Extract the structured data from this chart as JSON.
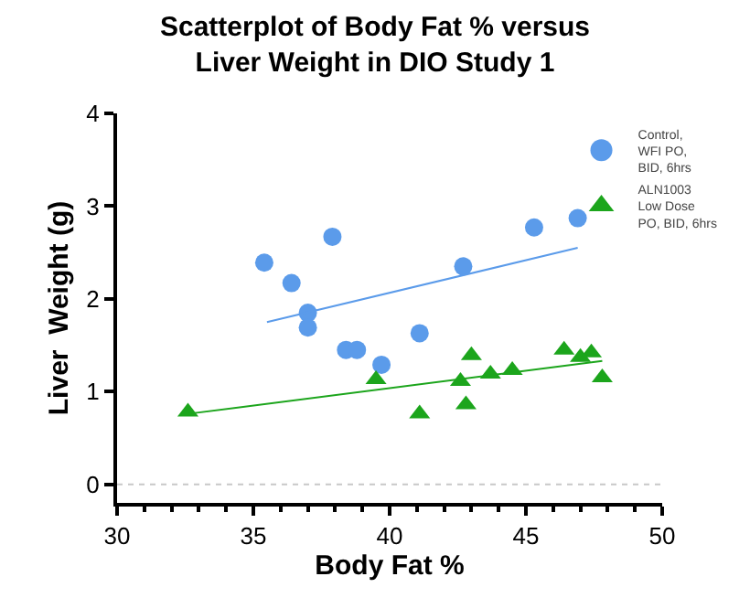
{
  "chart_data": {
    "type": "scatter",
    "title": "Scatterplot of Body Fat % versus\nLiver Weight in DIO Study 1",
    "xlabel": "Body Fat %",
    "ylabel": "Liver  Weight (g)",
    "xlim": [
      30,
      50
    ],
    "xticks": [
      30,
      35,
      40,
      45,
      50
    ],
    "ylim": [
      -0.2,
      4
    ],
    "yticks": [
      0,
      1,
      2,
      3,
      4
    ],
    "grid": false,
    "legend": "top right",
    "series": [
      {
        "name": "Control,\nWFI PO,\nBID, 6hrs",
        "color": "#5b9bea",
        "marker": "circle",
        "x": [
          35.4,
          36.4,
          37.0,
          37.0,
          37.9,
          38.4,
          38.8,
          39.7,
          41.1,
          42.7,
          45.3,
          46.9
        ],
        "values": [
          2.39,
          2.17,
          1.85,
          1.69,
          2.67,
          1.45,
          1.45,
          1.29,
          1.63,
          2.35,
          2.77,
          2.87
        ]
      },
      {
        "name": "ALN1003\nLow Dose\nPO, BID, 6hrs",
        "color": "#1ca51c",
        "marker": "triangle",
        "x": [
          32.6,
          39.5,
          41.1,
          42.6,
          42.8,
          43.0,
          43.7,
          44.5,
          46.4,
          47.0,
          47.4,
          47.8
        ],
        "values": [
          0.78,
          1.13,
          0.76,
          1.11,
          0.86,
          1.39,
          1.19,
          1.23,
          1.45,
          1.37,
          1.42,
          1.15
        ]
      },
      {
        "type": "line",
        "color": "#5b9bea",
        "x": [
          35.5,
          46.9
        ],
        "values": [
          1.75,
          2.55
        ]
      },
      {
        "type": "line",
        "color": "#1ca51c",
        "x": [
          32.6,
          47.8
        ],
        "values": [
          0.76,
          1.33
        ]
      }
    ],
    "ref_lines": [
      {
        "axis": "y",
        "value": 0,
        "label": null,
        "color": "#c8c8c8",
        "line_style": "dotted"
      }
    ]
  }
}
